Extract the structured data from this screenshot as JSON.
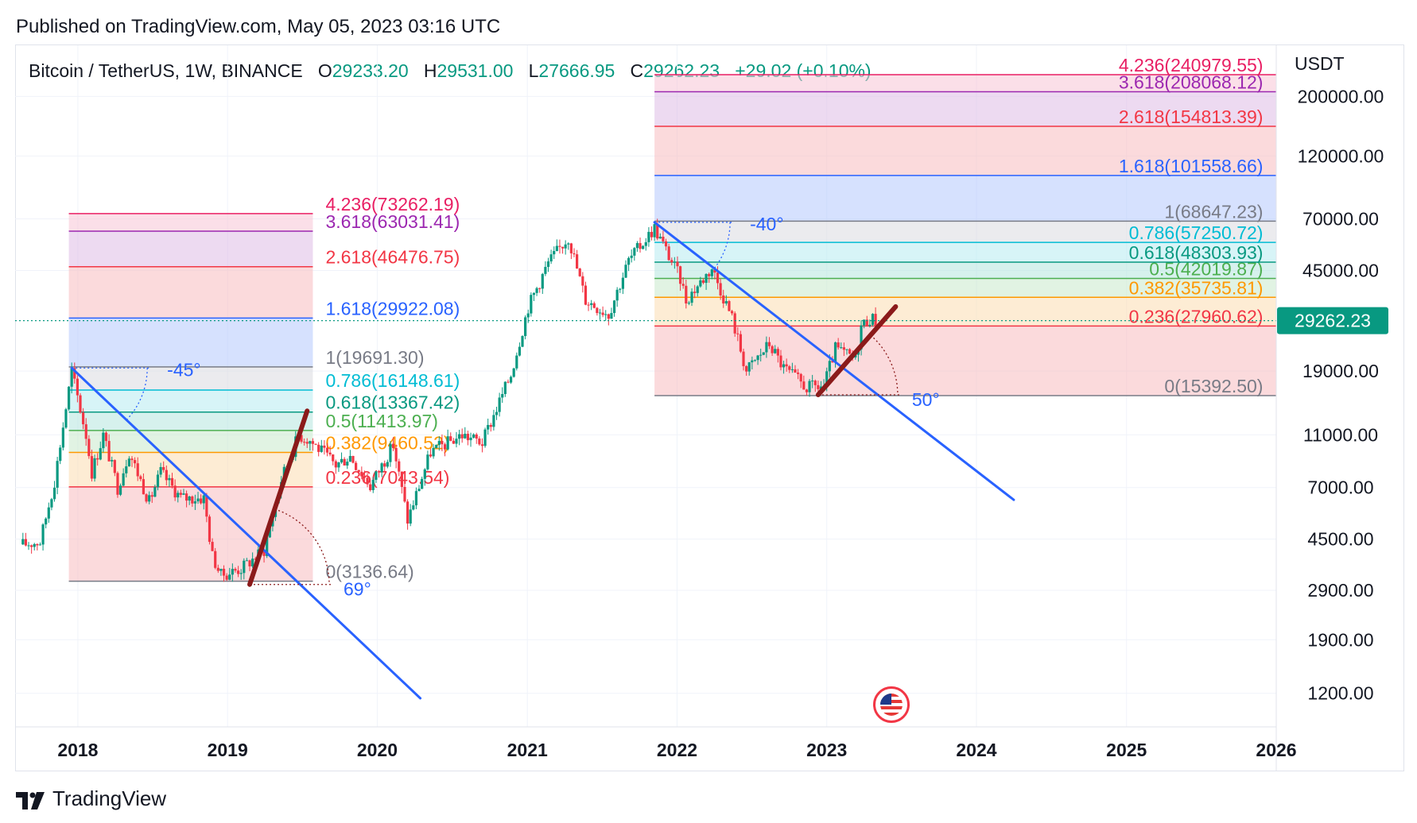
{
  "header": {
    "published": "Published on TradingView.com, May 05, 2023 03:16 UTC"
  },
  "legend": {
    "symbol": "Bitcoin / TetherUS, 1W, BINANCE",
    "open_label": "O",
    "open": "29233.20",
    "high_label": "H",
    "high": "29531.00",
    "low_label": "L",
    "low": "27666.95",
    "close_label": "C",
    "close": "29262.23",
    "change": "+29.02 (+0.10%)"
  },
  "footer": {
    "brand": "TradingView",
    "logo_icon": "tradingview-logo-icon"
  },
  "colors": {
    "up": "#089981",
    "down": "#f23645",
    "trend": "#2962ff",
    "counter": "#8b1a1a",
    "price_tag": "#089981"
  },
  "chart_data": {
    "type": "candlestick",
    "title": "",
    "currency": "USDT",
    "y_scale": "log",
    "ylim": [
      900,
      310000
    ],
    "x_range": [
      "2017-08",
      "2026-01"
    ],
    "x_ticks": [
      "2018",
      "2019",
      "2020",
      "2021",
      "2022",
      "2023",
      "2024",
      "2025",
      "2026"
    ],
    "y_ticks": [
      {
        "value": 200000,
        "label": "200000.00"
      },
      {
        "value": 120000,
        "label": "120000.00"
      },
      {
        "value": 70000,
        "label": "70000.00"
      },
      {
        "value": 45000,
        "label": "45000.00"
      },
      {
        "value": 19000,
        "label": "19000.00"
      },
      {
        "value": 11000,
        "label": "11000.00"
      },
      {
        "value": 7000,
        "label": "7000.00"
      },
      {
        "value": 4500,
        "label": "4500.00"
      },
      {
        "value": 2900,
        "label": "2900.00"
      },
      {
        "value": 1900,
        "label": "1900.00"
      },
      {
        "value": 1200,
        "label": "1200.00"
      }
    ],
    "last_price": {
      "value": 29262.23,
      "label": "29262.23"
    },
    "price_path": [
      [
        "2017-08-20",
        4300
      ],
      [
        "2017-10-01",
        4400
      ],
      [
        "2017-11-05",
        7400
      ],
      [
        "2017-12-17",
        19000
      ],
      [
        "2018-01-21",
        11000
      ],
      [
        "2018-02-04",
        8000
      ],
      [
        "2018-03-04",
        11000
      ],
      [
        "2018-04-08",
        7000
      ],
      [
        "2018-05-06",
        9500
      ],
      [
        "2018-06-24",
        6200
      ],
      [
        "2018-07-22",
        8000
      ],
      [
        "2018-09-09",
        6400
      ],
      [
        "2018-11-04",
        6400
      ],
      [
        "2018-11-25",
        3900
      ],
      [
        "2018-12-16",
        3300
      ],
      [
        "2019-02-03",
        3500
      ],
      [
        "2019-03-31",
        4100
      ],
      [
        "2019-05-12",
        7500
      ],
      [
        "2019-06-23",
        11000
      ],
      [
        "2019-07-21",
        10500
      ],
      [
        "2019-09-22",
        8500
      ],
      [
        "2019-10-27",
        9200
      ],
      [
        "2019-12-15",
        7100
      ],
      [
        "2020-02-09",
        10100
      ],
      [
        "2020-03-15",
        5300
      ],
      [
        "2020-05-10",
        9500
      ],
      [
        "2020-07-26",
        11000
      ],
      [
        "2020-09-13",
        10300
      ],
      [
        "2020-11-22",
        18500
      ],
      [
        "2021-01-03",
        33000
      ],
      [
        "2021-02-21",
        48000
      ],
      [
        "2021-04-11",
        60000
      ],
      [
        "2021-05-23",
        35000
      ],
      [
        "2021-07-18",
        31000
      ],
      [
        "2021-09-05",
        49000
      ],
      [
        "2021-10-24",
        61000
      ],
      [
        "2021-11-07",
        65000
      ],
      [
        "2022-01-09",
        42000
      ],
      [
        "2022-01-23",
        35000
      ],
      [
        "2022-03-27",
        46000
      ],
      [
        "2022-05-15",
        30000
      ],
      [
        "2022-06-19",
        19000
      ],
      [
        "2022-08-14",
        24000
      ],
      [
        "2022-09-18",
        19500
      ],
      [
        "2022-11-13",
        16500
      ],
      [
        "2022-12-25",
        16700
      ],
      [
        "2023-01-22",
        23000
      ],
      [
        "2023-03-12",
        21000
      ],
      [
        "2023-03-26",
        28000
      ],
      [
        "2023-04-16",
        30000
      ],
      [
        "2023-04-30",
        29262
      ]
    ],
    "fib_sets": [
      {
        "start": "2017-12-10",
        "end": "2019-07-28",
        "levels": [
          {
            "ratio": 0,
            "value": 3136.64,
            "label": "0(3136.64)",
            "color": "#787b86"
          },
          {
            "ratio": 0.236,
            "value": 7043.54,
            "label": "0.236(7043.54)",
            "color": "#f23645"
          },
          {
            "ratio": 0.382,
            "value": 9460.52,
            "label": "0.382(9460.52)",
            "color": "#ff9800"
          },
          {
            "ratio": 0.5,
            "value": 11413.97,
            "label": "0.5(11413.97)",
            "color": "#4caf50"
          },
          {
            "ratio": 0.618,
            "value": 13367.42,
            "label": "0.618(13367.42)",
            "color": "#089981"
          },
          {
            "ratio": 0.786,
            "value": 16148.61,
            "label": "0.786(16148.61)",
            "color": "#00bcd4"
          },
          {
            "ratio": 1,
            "value": 19691.3,
            "label": "1(19691.30)",
            "color": "#787b86"
          },
          {
            "ratio": 1.618,
            "value": 29922.08,
            "label": "1.618(29922.08)",
            "color": "#2962ff"
          },
          {
            "ratio": 2.618,
            "value": 46476.75,
            "label": "2.618(46476.75)",
            "color": "#f23645"
          },
          {
            "ratio": 3.618,
            "value": 63031.41,
            "label": "3.618(63031.41)",
            "color": "#9c27b0"
          },
          {
            "ratio": 4.236,
            "value": 73262.19,
            "label": "4.236(73262.19)",
            "color": "#e91e63"
          }
        ]
      },
      {
        "start": "2021-11-07",
        "end": "2025-12-31",
        "levels": [
          {
            "ratio": 0,
            "value": 15392.5,
            "label": "0(15392.50)",
            "color": "#787b86"
          },
          {
            "ratio": 0.236,
            "value": 27960.62,
            "label": "0.236(27960.62)",
            "color": "#f23645"
          },
          {
            "ratio": 0.382,
            "value": 35735.81,
            "label": "0.382(35735.81)",
            "color": "#ff9800"
          },
          {
            "ratio": 0.5,
            "value": 42019.87,
            "label": "0.5(42019.87)",
            "color": "#4caf50"
          },
          {
            "ratio": 0.618,
            "value": 48303.93,
            "label": "0.618(48303.93)",
            "color": "#089981"
          },
          {
            "ratio": 0.786,
            "value": 57250.72,
            "label": "0.786(57250.72)",
            "color": "#00bcd4"
          },
          {
            "ratio": 1,
            "value": 68647.23,
            "label": "1(68647.23)",
            "color": "#787b86"
          },
          {
            "ratio": 1.618,
            "value": 101558.66,
            "label": "1.618(101558.66)",
            "color": "#2962ff"
          },
          {
            "ratio": 2.618,
            "value": 154813.39,
            "label": "2.618(154813.39)",
            "color": "#f23645"
          },
          {
            "ratio": 3.618,
            "value": 208068.12,
            "label": "3.618(208068.12)",
            "color": "#9c27b0"
          },
          {
            "ratio": 4.236,
            "value": 240979.55,
            "label": "4.236(240979.55)",
            "color": "#e91e63"
          }
        ]
      }
    ],
    "trend_lines": [
      {
        "from": [
          "2017-12-17",
          19500
        ],
        "to": [
          "2020-04-15",
          1150
        ],
        "color": "#2962ff",
        "angle_label": "-45°"
      },
      {
        "from": [
          "2021-11-07",
          68000
        ],
        "to": [
          "2024-04-01",
          6300
        ],
        "color": "#2962ff",
        "angle_label": "-40°"
      }
    ],
    "counter_lines": [
      {
        "from": [
          "2019-02-24",
          3050
        ],
        "to": [
          "2019-07-14",
          13500
        ],
        "color": "#8b1a1a",
        "angle_label": "69°"
      },
      {
        "from": [
          "2022-12-11",
          15500
        ],
        "to": [
          "2023-06-18",
          33000
        ],
        "color": "#8b1a1a",
        "angle_label": "50°"
      }
    ]
  }
}
